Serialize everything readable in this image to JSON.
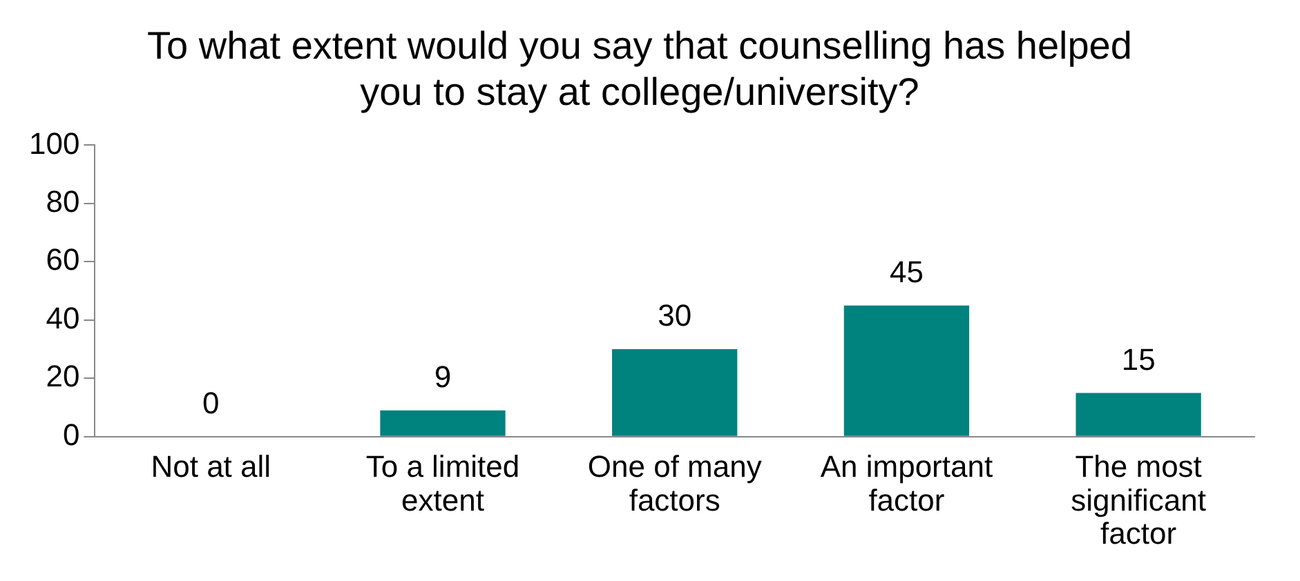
{
  "chart_data": {
    "type": "bar",
    "title": "To what extent would you say that counselling has helped you to stay at college/university?",
    "categories": [
      "Not at all",
      "To a limited extent",
      "One of many factors",
      "An important factor",
      "The most significant factor"
    ],
    "values": [
      0,
      9,
      30,
      45,
      15
    ],
    "color": "#00827f",
    "ylim": [
      0,
      100
    ],
    "yticks": [
      0,
      20,
      40,
      60,
      80,
      100
    ],
    "grid": false,
    "legend": false,
    "data_labels": true
  }
}
